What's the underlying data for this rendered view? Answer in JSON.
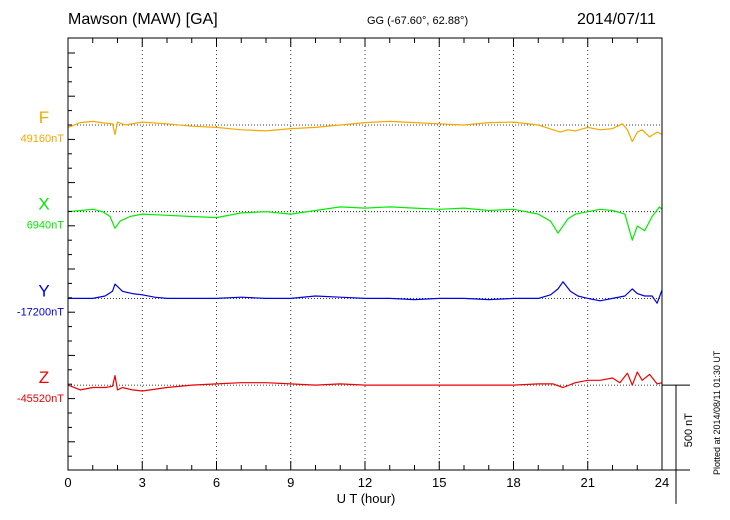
{
  "header": {
    "station": "Mawson (MAW)  [GA]",
    "coords": "GG (-67.60°,  62.88°)",
    "date": "2014/07/11"
  },
  "footer": {
    "plotted": "Plotted at 2014/08/11 01:30 UT"
  },
  "colors": {
    "F": "#f5a800",
    "X": "#00ee00",
    "Y": "#0000dd",
    "Z": "#ee0000",
    "axis": "#000000"
  },
  "chart_data": {
    "type": "line",
    "xlabel": "U T (hour)",
    "xlim": [
      0,
      24
    ],
    "x_ticks": [
      0,
      3,
      6,
      9,
      12,
      15,
      18,
      21,
      24
    ],
    "x_tick_labels": [
      "0",
      "3",
      "6",
      "9",
      "12",
      "15",
      "18",
      "21",
      "24"
    ],
    "grid": true,
    "scale_bar": {
      "label": "500 nT",
      "value_nT": 500
    },
    "nT_per_panel_step": 365,
    "series": [
      {
        "name": "F",
        "baseline_label": "49160nT",
        "baseline_nT": 49160,
        "x": [
          0,
          0.5,
          1.0,
          1.5,
          1.8,
          1.9,
          2.0,
          2.3,
          3,
          4,
          5,
          6,
          7,
          8,
          9,
          10,
          11,
          12,
          13,
          14,
          15,
          16,
          17,
          18,
          19,
          19.6,
          19.9,
          20.2,
          20.5,
          21,
          21.5,
          22,
          22.4,
          22.6,
          22.8,
          23.0,
          23.2,
          23.5,
          23.8,
          24
        ],
        "y": [
          -10,
          10,
          15,
          8,
          5,
          -40,
          12,
          0,
          12,
          5,
          -5,
          -10,
          -20,
          -25,
          -15,
          -10,
          0,
          10,
          15,
          10,
          5,
          0,
          10,
          12,
          0,
          -20,
          -30,
          -20,
          -25,
          -10,
          -20,
          -15,
          5,
          -20,
          -70,
          -30,
          -20,
          -50,
          -30,
          -40
        ]
      },
      {
        "name": "X",
        "baseline_label": "6940nT",
        "baseline_nT": 6940,
        "x": [
          0,
          0.5,
          1.0,
          1.4,
          1.7,
          1.9,
          2.1,
          2.5,
          3,
          4,
          5,
          6,
          7,
          8,
          9,
          10,
          11,
          12,
          13,
          14,
          15,
          16,
          17,
          18,
          19,
          19.5,
          19.8,
          20.2,
          20.5,
          21,
          21.5,
          22,
          22.5,
          22.8,
          23.0,
          23.3,
          23.6,
          23.9,
          24
        ],
        "y": [
          0,
          5,
          10,
          0,
          -20,
          -70,
          -40,
          -20,
          -10,
          -15,
          -20,
          -25,
          -5,
          0,
          -10,
          5,
          20,
          15,
          20,
          15,
          10,
          15,
          5,
          10,
          -10,
          -40,
          -90,
          -30,
          -10,
          0,
          10,
          5,
          -10,
          -120,
          -60,
          -80,
          -20,
          20,
          10
        ]
      },
      {
        "name": "Y",
        "baseline_label": "-17200nT",
        "baseline_nT": -17200,
        "x": [
          0,
          1.0,
          1.5,
          1.8,
          1.9,
          2.2,
          2.6,
          3,
          3.5,
          4,
          5,
          6,
          7,
          8,
          9,
          10,
          11,
          12,
          13,
          14,
          15,
          16,
          17,
          18,
          19,
          19.5,
          19.8,
          20.0,
          20.3,
          20.6,
          21,
          21.5,
          22,
          22.5,
          22.8,
          23.0,
          23.3,
          23.6,
          23.8,
          24
        ],
        "y": [
          0,
          0,
          10,
          30,
          60,
          30,
          20,
          15,
          5,
          0,
          0,
          0,
          5,
          0,
          0,
          10,
          5,
          0,
          0,
          -5,
          0,
          0,
          -5,
          0,
          0,
          15,
          40,
          70,
          30,
          10,
          0,
          -10,
          0,
          10,
          40,
          20,
          10,
          10,
          -20,
          35
        ]
      },
      {
        "name": "Z",
        "baseline_label": "-45520nT",
        "baseline_nT": -45520,
        "x": [
          0,
          0.5,
          1.0,
          1.5,
          1.8,
          1.9,
          2.0,
          2.2,
          2.6,
          3,
          4,
          5,
          6,
          7,
          8,
          9,
          10,
          11,
          12,
          13,
          14,
          15,
          16,
          17,
          18,
          19,
          19.6,
          20.0,
          20.5,
          21,
          21.5,
          22,
          22.3,
          22.6,
          22.8,
          23.0,
          23.2,
          23.5,
          23.8,
          24
        ],
        "y": [
          0,
          -20,
          -10,
          -10,
          -5,
          40,
          -20,
          -10,
          -20,
          -25,
          -10,
          0,
          5,
          10,
          10,
          5,
          0,
          5,
          0,
          0,
          0,
          0,
          0,
          0,
          0,
          5,
          5,
          -10,
          10,
          20,
          20,
          30,
          10,
          50,
          0,
          55,
          20,
          45,
          5,
          10
        ]
      }
    ]
  }
}
